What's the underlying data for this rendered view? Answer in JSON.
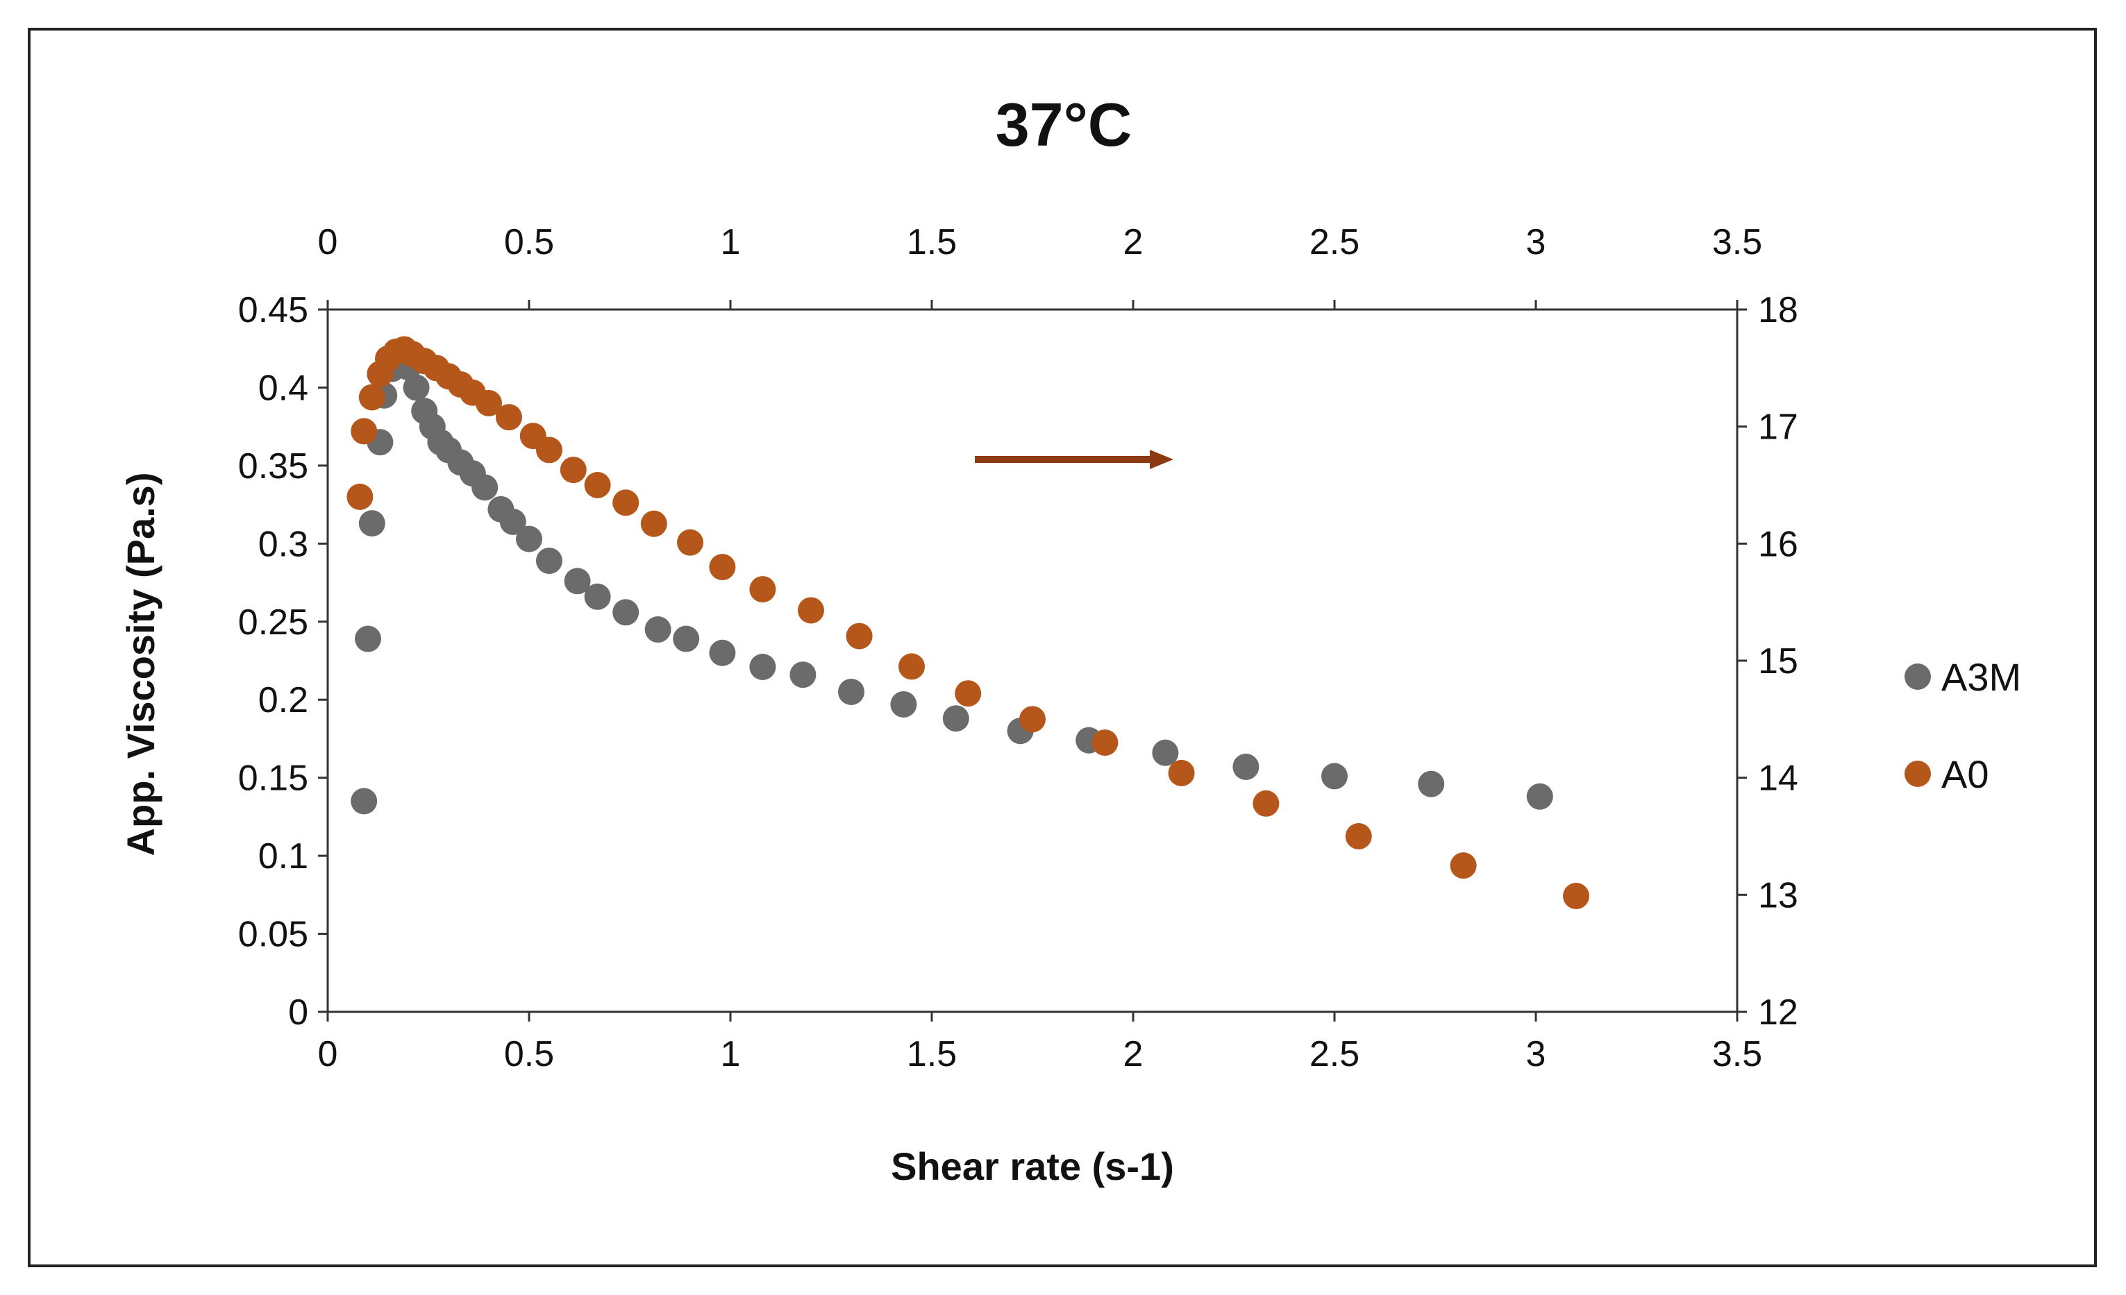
{
  "chart_data": {
    "type": "scatter",
    "title": "37°C",
    "xlabel": "Shear rate (s-1)",
    "ylabel": "App. Viscosity (Pa.s)",
    "xlim": [
      0,
      3.5
    ],
    "ylim": [
      0,
      0.45
    ],
    "y2lim": [
      12,
      18
    ],
    "x_ticks": [
      "0",
      "0.5",
      "1",
      "1.5",
      "2",
      "2.5",
      "3",
      "3.5"
    ],
    "y_ticks": [
      "0",
      "0.05",
      "0.1",
      "0.15",
      "0.2",
      "0.25",
      "0.3",
      "0.35",
      "0.4",
      "0.45"
    ],
    "y2_ticks": [
      "12",
      "13",
      "14",
      "15",
      "16",
      "17",
      "18"
    ],
    "legend_position": "right",
    "arrow_direction": "right",
    "series": [
      {
        "name": "A3M",
        "axis": "left",
        "color": "#6b6b6b",
        "points": [
          [
            0.09,
            0.135
          ],
          [
            0.1,
            0.239
          ],
          [
            0.11,
            0.313
          ],
          [
            0.13,
            0.365
          ],
          [
            0.14,
            0.395
          ],
          [
            0.16,
            0.412
          ],
          [
            0.18,
            0.423
          ],
          [
            0.2,
            0.413
          ],
          [
            0.22,
            0.4
          ],
          [
            0.24,
            0.385
          ],
          [
            0.26,
            0.375
          ],
          [
            0.28,
            0.365
          ],
          [
            0.3,
            0.36
          ],
          [
            0.33,
            0.352
          ],
          [
            0.36,
            0.345
          ],
          [
            0.39,
            0.336
          ],
          [
            0.43,
            0.322
          ],
          [
            0.46,
            0.314
          ],
          [
            0.5,
            0.303
          ],
          [
            0.55,
            0.289
          ],
          [
            0.62,
            0.276
          ],
          [
            0.67,
            0.266
          ],
          [
            0.74,
            0.256
          ],
          [
            0.82,
            0.245
          ],
          [
            0.89,
            0.239
          ],
          [
            0.98,
            0.23
          ],
          [
            1.08,
            0.221
          ],
          [
            1.18,
            0.216
          ],
          [
            1.3,
            0.205
          ],
          [
            1.43,
            0.197
          ],
          [
            1.56,
            0.188
          ],
          [
            1.72,
            0.18
          ],
          [
            1.89,
            0.174
          ],
          [
            2.08,
            0.166
          ],
          [
            2.28,
            0.157
          ],
          [
            2.5,
            0.151
          ],
          [
            2.74,
            0.146
          ],
          [
            3.01,
            0.138
          ]
        ]
      },
      {
        "name": "A0",
        "axis": "right",
        "color": "#b5561a",
        "points": [
          [
            0.08,
            16.4
          ],
          [
            0.09,
            16.96
          ],
          [
            0.11,
            17.25
          ],
          [
            0.13,
            17.45
          ],
          [
            0.15,
            17.58
          ],
          [
            0.17,
            17.64
          ],
          [
            0.19,
            17.66
          ],
          [
            0.21,
            17.62
          ],
          [
            0.24,
            17.56
          ],
          [
            0.27,
            17.5
          ],
          [
            0.3,
            17.43
          ],
          [
            0.33,
            17.36
          ],
          [
            0.36,
            17.29
          ],
          [
            0.4,
            17.2
          ],
          [
            0.45,
            17.08
          ],
          [
            0.51,
            16.92
          ],
          [
            0.55,
            16.8
          ],
          [
            0.61,
            16.63
          ],
          [
            0.67,
            16.5
          ],
          [
            0.74,
            16.35
          ],
          [
            0.81,
            16.17
          ],
          [
            0.9,
            16.01
          ],
          [
            0.98,
            15.8
          ],
          [
            1.08,
            15.61
          ],
          [
            1.2,
            15.43
          ],
          [
            1.32,
            15.21
          ],
          [
            1.45,
            14.95
          ],
          [
            1.59,
            14.72
          ],
          [
            1.75,
            14.5
          ],
          [
            1.93,
            14.3
          ],
          [
            2.12,
            14.04
          ],
          [
            2.33,
            13.78
          ],
          [
            2.56,
            13.5
          ],
          [
            2.82,
            13.25
          ],
          [
            3.1,
            12.99
          ]
        ]
      }
    ]
  }
}
